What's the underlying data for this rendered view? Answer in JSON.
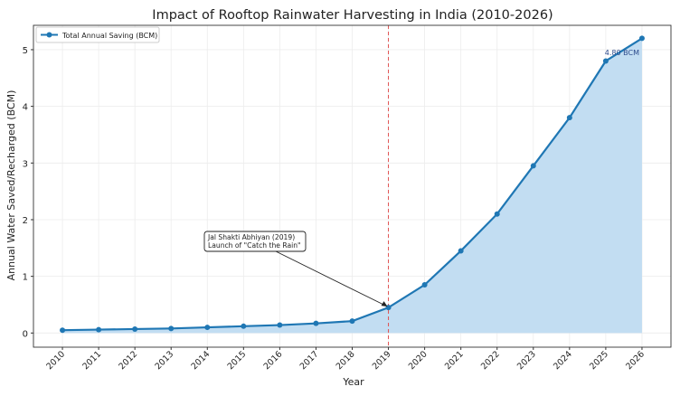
{
  "chart_data": {
    "type": "line",
    "title": "Impact of Rooftop Rainwater Harvesting in India (2010-2026)",
    "xlabel": "Year",
    "ylabel": "Annual Water Saved/Recharged (BCM)",
    "x": [
      2010,
      2011,
      2012,
      2013,
      2014,
      2015,
      2016,
      2017,
      2018,
      2019,
      2020,
      2021,
      2022,
      2023,
      2024,
      2025,
      2026
    ],
    "series": [
      {
        "name": "Total Annual Saving (BCM)",
        "values": [
          0.05,
          0.06,
          0.07,
          0.08,
          0.1,
          0.12,
          0.14,
          0.17,
          0.21,
          0.45,
          0.85,
          1.45,
          2.1,
          2.95,
          3.8,
          4.8,
          5.2
        ],
        "color": "#1f77b4",
        "fill": "#c2ddf2"
      }
    ],
    "xlim": [
      2009.2,
      2026.8
    ],
    "ylim": [
      -0.25,
      5.43
    ],
    "yticks": [
      0,
      1,
      2,
      3,
      4,
      5
    ],
    "xticks": [
      "2010",
      "2011",
      "2012",
      "2013",
      "2014",
      "2015",
      "2016",
      "2017",
      "2018",
      "2019",
      "2020",
      "2021",
      "2022",
      "2023",
      "2024",
      "2025",
      "2026"
    ],
    "grid": true,
    "legend_position": "top-left",
    "vline": {
      "x": 2019,
      "color": "#e05050"
    },
    "annotations": [
      {
        "text_lines": [
          "Jal Shakti Abhiyan (2019)",
          "Launch of \"Catch the Rain\""
        ],
        "target_x": 2019,
        "target_y": 0.45,
        "text_x": 2014,
        "text_y": 1.6
      },
      {
        "text": "4.80 BCM",
        "x": 2025,
        "y": 4.95
      }
    ]
  }
}
